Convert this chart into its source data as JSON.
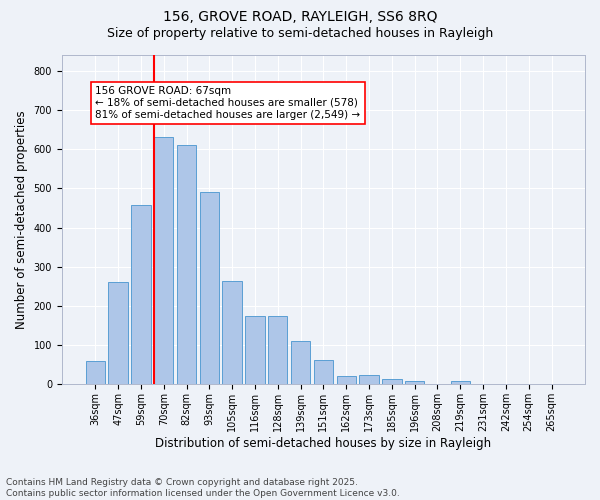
{
  "title1": "156, GROVE ROAD, RAYLEIGH, SS6 8RQ",
  "title2": "Size of property relative to semi-detached houses in Rayleigh",
  "xlabel": "Distribution of semi-detached houses by size in Rayleigh",
  "ylabel": "Number of semi-detached properties",
  "categories": [
    "36sqm",
    "47sqm",
    "59sqm",
    "70sqm",
    "82sqm",
    "93sqm",
    "105sqm",
    "116sqm",
    "128sqm",
    "139sqm",
    "151sqm",
    "162sqm",
    "173sqm",
    "185sqm",
    "196sqm",
    "208sqm",
    "219sqm",
    "231sqm",
    "242sqm",
    "254sqm",
    "265sqm"
  ],
  "values": [
    60,
    260,
    457,
    632,
    610,
    490,
    265,
    175,
    175,
    110,
    63,
    22,
    25,
    13,
    8,
    0,
    8,
    0,
    0,
    0,
    0
  ],
  "bar_color": "#aec6e8",
  "bar_edge_color": "#5a9fd4",
  "vline_x": 3.0,
  "vline_color": "red",
  "annotation_text": "156 GROVE ROAD: 67sqm\n← 18% of semi-detached houses are smaller (578)\n81% of semi-detached houses are larger (2,549) →",
  "box_color": "red",
  "ylim": [
    0,
    840
  ],
  "yticks": [
    0,
    100,
    200,
    300,
    400,
    500,
    600,
    700,
    800
  ],
  "footer": "Contains HM Land Registry data © Crown copyright and database right 2025.\nContains public sector information licensed under the Open Government Licence v3.0.",
  "bg_color": "#eef2f8",
  "plot_bg_color": "#eef2f8",
  "grid_color": "#ffffff",
  "title_fontsize": 10,
  "subtitle_fontsize": 9,
  "label_fontsize": 8.5,
  "tick_fontsize": 7,
  "footer_fontsize": 6.5,
  "ann_fontsize": 7.5
}
